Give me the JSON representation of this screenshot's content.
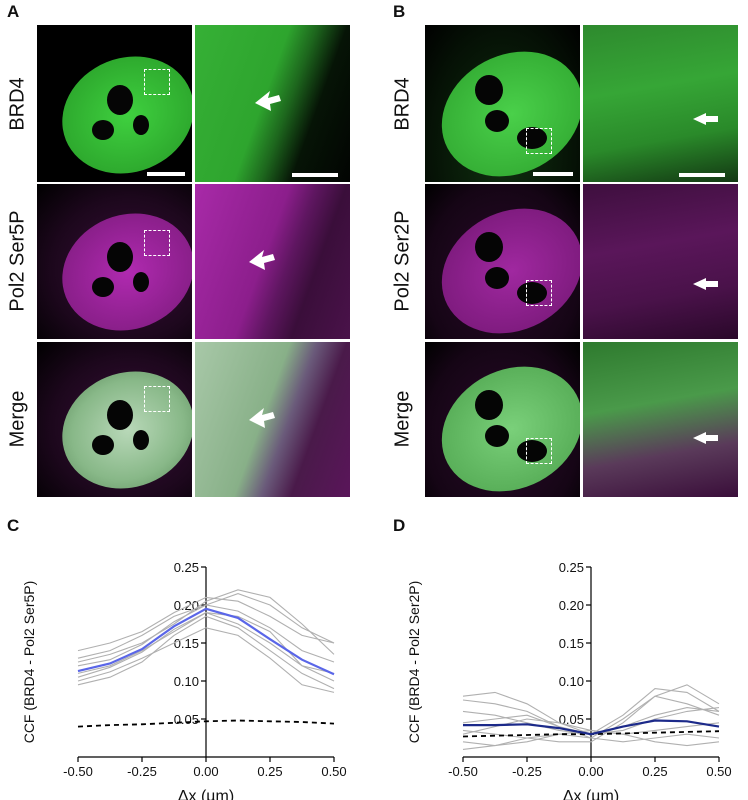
{
  "panels": {
    "A": {
      "letter": "A",
      "rows": [
        "BRD4",
        "Pol2 Ser5P",
        "Merge"
      ]
    },
    "B": {
      "letter": "B",
      "rows": [
        "BRD4",
        "Pol2 Ser2P",
        "Merge"
      ]
    },
    "C": {
      "letter": "C"
    },
    "D": {
      "letter": "D"
    }
  },
  "colors": {
    "green": "#33c233",
    "magenta": "#c02cc0",
    "mean_c": "#5a66e8",
    "mean_d": "#1c2a8a",
    "individual": "#b0b0b0",
    "control": "#000000"
  },
  "chart_data": [
    {
      "type": "line",
      "panel": "C",
      "ylabel": "CCF (BRD4 - Pol2 Ser5P)",
      "xlabel": "Δx (µm)",
      "xlim": [
        -0.5,
        0.5
      ],
      "ylim": [
        0.0,
        0.25
      ],
      "xticks": [
        "-0.50",
        "-0.25",
        "0.00",
        "0.25",
        "0.50"
      ],
      "yticks": [
        "0.05",
        "0.10",
        "0.15",
        "0.20",
        "0.25"
      ],
      "x": [
        -0.5,
        -0.375,
        -0.25,
        -0.125,
        0.0,
        0.125,
        0.25,
        0.375,
        0.5
      ],
      "series": [
        {
          "role": "mean",
          "values": [
            0.113,
            0.123,
            0.142,
            0.172,
            0.195,
            0.183,
            0.155,
            0.128,
            0.109
          ]
        },
        {
          "role": "control",
          "values": [
            0.04,
            0.042,
            0.043,
            0.045,
            0.047,
            0.048,
            0.047,
            0.046,
            0.044
          ]
        },
        {
          "role": "individual",
          "values": [
            0.14,
            0.15,
            0.165,
            0.19,
            0.21,
            0.205,
            0.185,
            0.16,
            0.15
          ]
        },
        {
          "role": "individual",
          "values": [
            0.13,
            0.14,
            0.16,
            0.185,
            0.2,
            0.215,
            0.2,
            0.17,
            0.15
          ]
        },
        {
          "role": "individual",
          "values": [
            0.095,
            0.105,
            0.125,
            0.16,
            0.185,
            0.17,
            0.14,
            0.11,
            0.09
          ]
        },
        {
          "role": "individual",
          "values": [
            0.11,
            0.12,
            0.14,
            0.165,
            0.19,
            0.175,
            0.15,
            0.12,
            0.1
          ]
        },
        {
          "role": "individual",
          "values": [
            0.125,
            0.135,
            0.15,
            0.175,
            0.205,
            0.22,
            0.21,
            0.175,
            0.135
          ]
        },
        {
          "role": "individual",
          "values": [
            0.105,
            0.118,
            0.138,
            0.168,
            0.19,
            0.185,
            0.165,
            0.12,
            0.11
          ]
        },
        {
          "role": "individual",
          "values": [
            0.1,
            0.112,
            0.13,
            0.15,
            0.17,
            0.16,
            0.13,
            0.095,
            0.085
          ]
        },
        {
          "role": "individual",
          "values": [
            0.12,
            0.128,
            0.148,
            0.178,
            0.2,
            0.192,
            0.17,
            0.14,
            0.125
          ]
        }
      ]
    },
    {
      "type": "line",
      "panel": "D",
      "ylabel": "CCF (BRD4 - Pol2 Ser2P)",
      "xlabel": "Δx (µm)",
      "xlim": [
        -0.5,
        0.5
      ],
      "ylim": [
        0.0,
        0.25
      ],
      "xticks": [
        "-0.50",
        "-0.25",
        "0.00",
        "0.25",
        "0.50"
      ],
      "yticks": [
        "0.05",
        "0.10",
        "0.15",
        "0.20",
        "0.25"
      ],
      "x": [
        -0.5,
        -0.375,
        -0.25,
        -0.125,
        0.0,
        0.125,
        0.25,
        0.375,
        0.5
      ],
      "series": [
        {
          "role": "mean",
          "values": [
            0.042,
            0.042,
            0.043,
            0.038,
            0.03,
            0.04,
            0.048,
            0.047,
            0.04
          ]
        },
        {
          "role": "control",
          "values": [
            0.027,
            0.028,
            0.029,
            0.03,
            0.03,
            0.031,
            0.032,
            0.033,
            0.034
          ]
        },
        {
          "role": "individual",
          "values": [
            0.08,
            0.085,
            0.07,
            0.045,
            0.03,
            0.055,
            0.09,
            0.085,
            0.06
          ]
        },
        {
          "role": "individual",
          "values": [
            0.075,
            0.07,
            0.06,
            0.04,
            0.025,
            0.05,
            0.08,
            0.095,
            0.07
          ]
        },
        {
          "role": "individual",
          "values": [
            0.035,
            0.03,
            0.025,
            0.02,
            0.02,
            0.045,
            0.08,
            0.07,
            0.055
          ]
        },
        {
          "role": "individual",
          "values": [
            0.03,
            0.04,
            0.05,
            0.045,
            0.035,
            0.03,
            0.035,
            0.04,
            0.045
          ]
        },
        {
          "role": "individual",
          "values": [
            0.02,
            0.015,
            0.02,
            0.03,
            0.025,
            0.02,
            0.025,
            0.03,
            0.025
          ]
        },
        {
          "role": "individual",
          "values": [
            0.045,
            0.05,
            0.055,
            0.04,
            0.03,
            0.035,
            0.05,
            0.06,
            0.065
          ]
        },
        {
          "role": "individual",
          "values": [
            0.01,
            0.015,
            0.025,
            0.03,
            0.035,
            0.03,
            0.02,
            0.015,
            0.02
          ]
        },
        {
          "role": "individual",
          "values": [
            0.06,
            0.055,
            0.045,
            0.035,
            0.03,
            0.04,
            0.055,
            0.065,
            0.06
          ]
        }
      ]
    }
  ]
}
